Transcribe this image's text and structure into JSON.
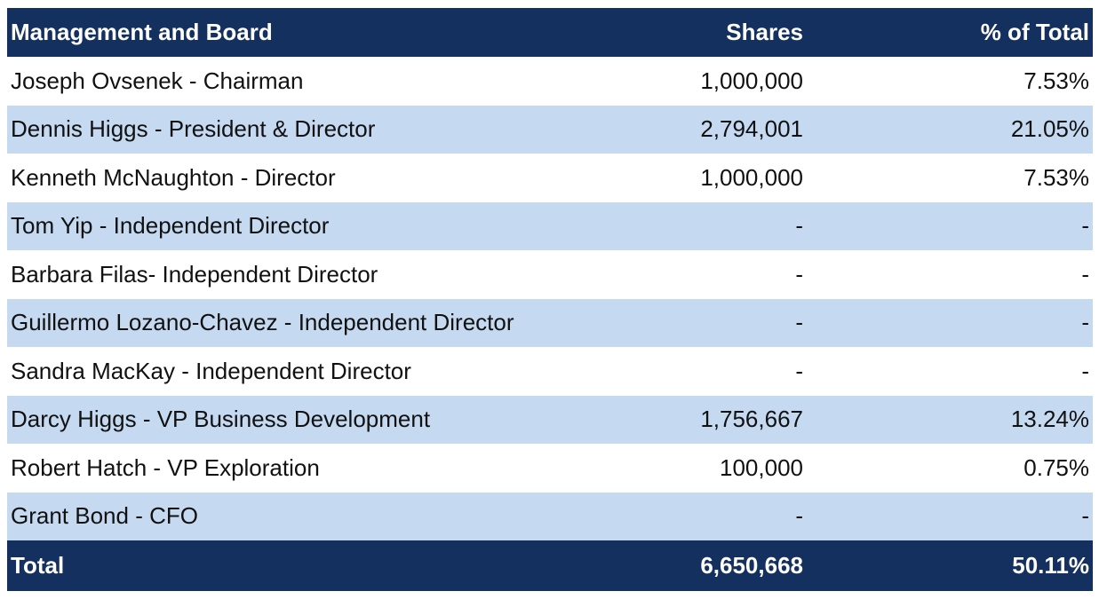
{
  "table": {
    "header": {
      "name": "Management and Board",
      "shares": "Shares",
      "pct": "% of Total"
    },
    "rows": [
      {
        "name": "Joseph Ovsenek - Chairman",
        "shares": "1,000,000",
        "pct": "7.53%"
      },
      {
        "name": "Dennis Higgs - President & Director",
        "shares": "2,794,001",
        "pct": "21.05%"
      },
      {
        "name": "Kenneth McNaughton - Director",
        "shares": "1,000,000",
        "pct": "7.53%"
      },
      {
        "name": "Tom Yip - Independent Director",
        "shares": "-",
        "pct": "-"
      },
      {
        "name": "Barbara Filas- Independent Director",
        "shares": "-",
        "pct": "-"
      },
      {
        "name": "Guillermo Lozano-Chavez - Independent Director",
        "shares": "-",
        "pct": "-"
      },
      {
        "name": "Sandra MacKay -  Independent Director",
        "shares": "-",
        "pct": "-"
      },
      {
        "name": "Darcy Higgs - VP Business Development",
        "shares": "1,756,667",
        "pct": "13.24%"
      },
      {
        "name": "Robert Hatch - VP Exploration",
        "shares": "100,000",
        "pct": "0.75%"
      },
      {
        "name": "Grant Bond - CFO",
        "shares": "-",
        "pct": "-"
      }
    ],
    "total": {
      "name": "Total",
      "shares": "6,650,668",
      "pct": "50.11%"
    }
  },
  "colors": {
    "header_bg": "#14305f",
    "alt_row_bg": "#c5d9f1",
    "row_bg": "#ffffff"
  }
}
